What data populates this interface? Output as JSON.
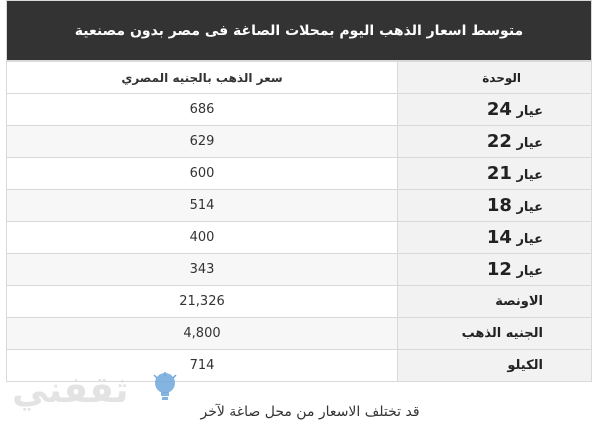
{
  "table": {
    "title": "متوسط اسعار الذهب اليوم بمحلات الصاغة فى مصر بدون مصنعية",
    "header": {
      "unit": "الوحدة",
      "price": "سعر الذهب بالجنيه المصري"
    },
    "rows": [
      {
        "word": "عيار",
        "num": "24",
        "price": "686"
      },
      {
        "word": "عيار",
        "num": "22",
        "price": "629"
      },
      {
        "word": "عيار",
        "num": "21",
        "price": "600"
      },
      {
        "word": "عيار",
        "num": "18",
        "price": "514"
      },
      {
        "word": "عيار",
        "num": "14",
        "price": "400"
      },
      {
        "word": "عيار",
        "num": "12",
        "price": "343"
      }
    ],
    "extra": [
      {
        "label": "الاونصة",
        "price": "21,326"
      },
      {
        "label": "الجنيه الذهب",
        "price": "4,800"
      },
      {
        "label": "الكيلو",
        "price": "714"
      }
    ]
  },
  "note": "قد تختلف الاسعار من محل صاغة لآخر",
  "watermark": {
    "text": "ثقفني",
    "icon": "lightbulb-icon"
  }
}
